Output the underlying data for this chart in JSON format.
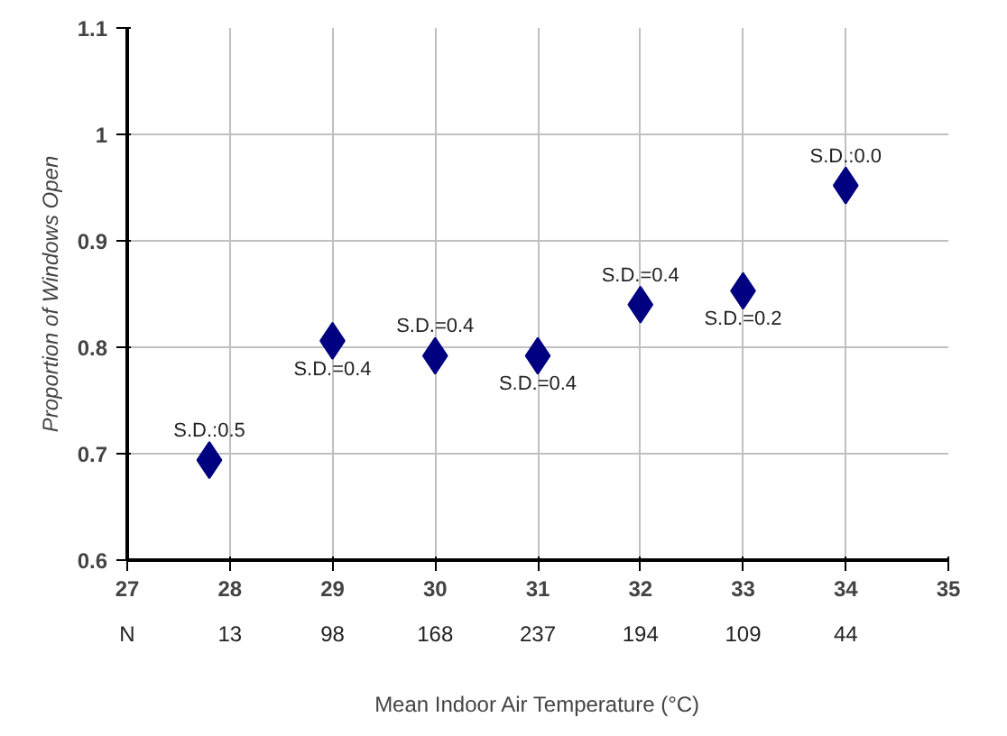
{
  "chart_data": {
    "type": "scatter",
    "xlabel": "Mean Indoor Air Temperature (°C)",
    "ylabel": "Proportion of Windows Open",
    "x": [
      27.8,
      29,
      30,
      31,
      32,
      33,
      34
    ],
    "values": [
      0.694,
      0.806,
      0.792,
      0.792,
      0.84,
      0.853,
      0.952
    ],
    "color": "#000080",
    "marker": "diamond",
    "xlim": [
      27,
      35
    ],
    "xticks": [
      27,
      28,
      29,
      30,
      31,
      32,
      33,
      34,
      35
    ],
    "ylim": [
      0.6,
      1.1
    ],
    "yticks": [
      0.6,
      0.7,
      0.8,
      0.9,
      1,
      1.1
    ],
    "grid": true,
    "annotations": [
      {
        "text": "S.D.:0.5",
        "x": 27.8,
        "y": 0.694
      },
      {
        "text": "S.D.=0.4",
        "x": 29,
        "y": 0.806
      },
      {
        "text": "S.D.=0.4",
        "x": 30,
        "y": 0.792
      },
      {
        "text": "S.D.=0.4",
        "x": 31,
        "y": 0.792
      },
      {
        "text": "S.D.=0.4",
        "x": 32,
        "y": 0.84
      },
      {
        "text": "S.D.=0.2",
        "x": 33,
        "y": 0.853
      },
      {
        "text": "S.D.:0.0",
        "x": 34,
        "y": 0.952
      },
      "N",
      "13",
      "98",
      "168",
      "237",
      "194",
      "109",
      "44"
    ]
  }
}
